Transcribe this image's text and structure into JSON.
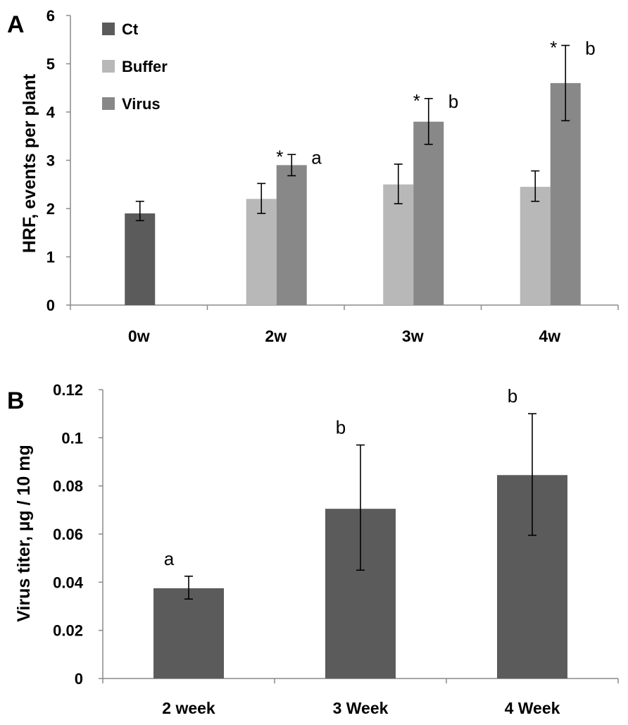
{
  "colors": {
    "ct": "#5b5b5b",
    "buffer": "#b8b8b8",
    "virus": "#888888",
    "b_bar": "#5b5b5b"
  },
  "chart_data": [
    {
      "panel": "A",
      "type": "bar",
      "ylabel": "HRF, events  per plant",
      "ylim": [
        0,
        6
      ],
      "yticks": [
        "0",
        "1",
        "2",
        "3",
        "4",
        "5",
        "6"
      ],
      "categories": [
        "0w",
        "2w",
        "3w",
        "4w"
      ],
      "legend_position": "top-left",
      "series": [
        {
          "name": "Ct",
          "values": [
            1.9,
            null,
            null,
            null
          ],
          "err_low": [
            1.75,
            null,
            null,
            null
          ],
          "err_high": [
            2.15,
            null,
            null,
            null
          ],
          "stars": [
            "",
            "",
            "",
            ""
          ],
          "letters": [
            "",
            "",
            "",
            ""
          ]
        },
        {
          "name": "Buffer",
          "values": [
            null,
            2.2,
            2.5,
            2.45
          ],
          "err_low": [
            null,
            1.9,
            2.1,
            2.15
          ],
          "err_high": [
            null,
            2.52,
            2.92,
            2.78
          ],
          "stars": [
            "",
            "",
            "",
            ""
          ],
          "letters": [
            "",
            "",
            "",
            ""
          ]
        },
        {
          "name": "Virus",
          "values": [
            null,
            2.9,
            3.8,
            4.6
          ],
          "err_low": [
            null,
            2.68,
            3.33,
            3.82
          ],
          "err_high": [
            null,
            3.12,
            4.28,
            5.38
          ],
          "stars": [
            "",
            "*",
            "*",
            "*"
          ],
          "letters": [
            "",
            "a",
            "b",
            "b"
          ]
        }
      ]
    },
    {
      "panel": "B",
      "type": "bar",
      "ylabel": "Virus titer, µg / 10 mg",
      "ylim": [
        0,
        0.12
      ],
      "yticks": [
        "0",
        "0.02",
        "0.04",
        "0.06",
        "0.08",
        "0.1",
        "0.12"
      ],
      "categories": [
        "2 week",
        "3 Week",
        "4 Week"
      ],
      "series": [
        {
          "name": "Virus titer",
          "values": [
            0.0375,
            0.0705,
            0.0845
          ],
          "err_low": [
            0.033,
            0.045,
            0.0595
          ],
          "err_high": [
            0.0425,
            0.097,
            0.11
          ],
          "letters": [
            "a",
            "b",
            "b"
          ]
        }
      ]
    }
  ]
}
